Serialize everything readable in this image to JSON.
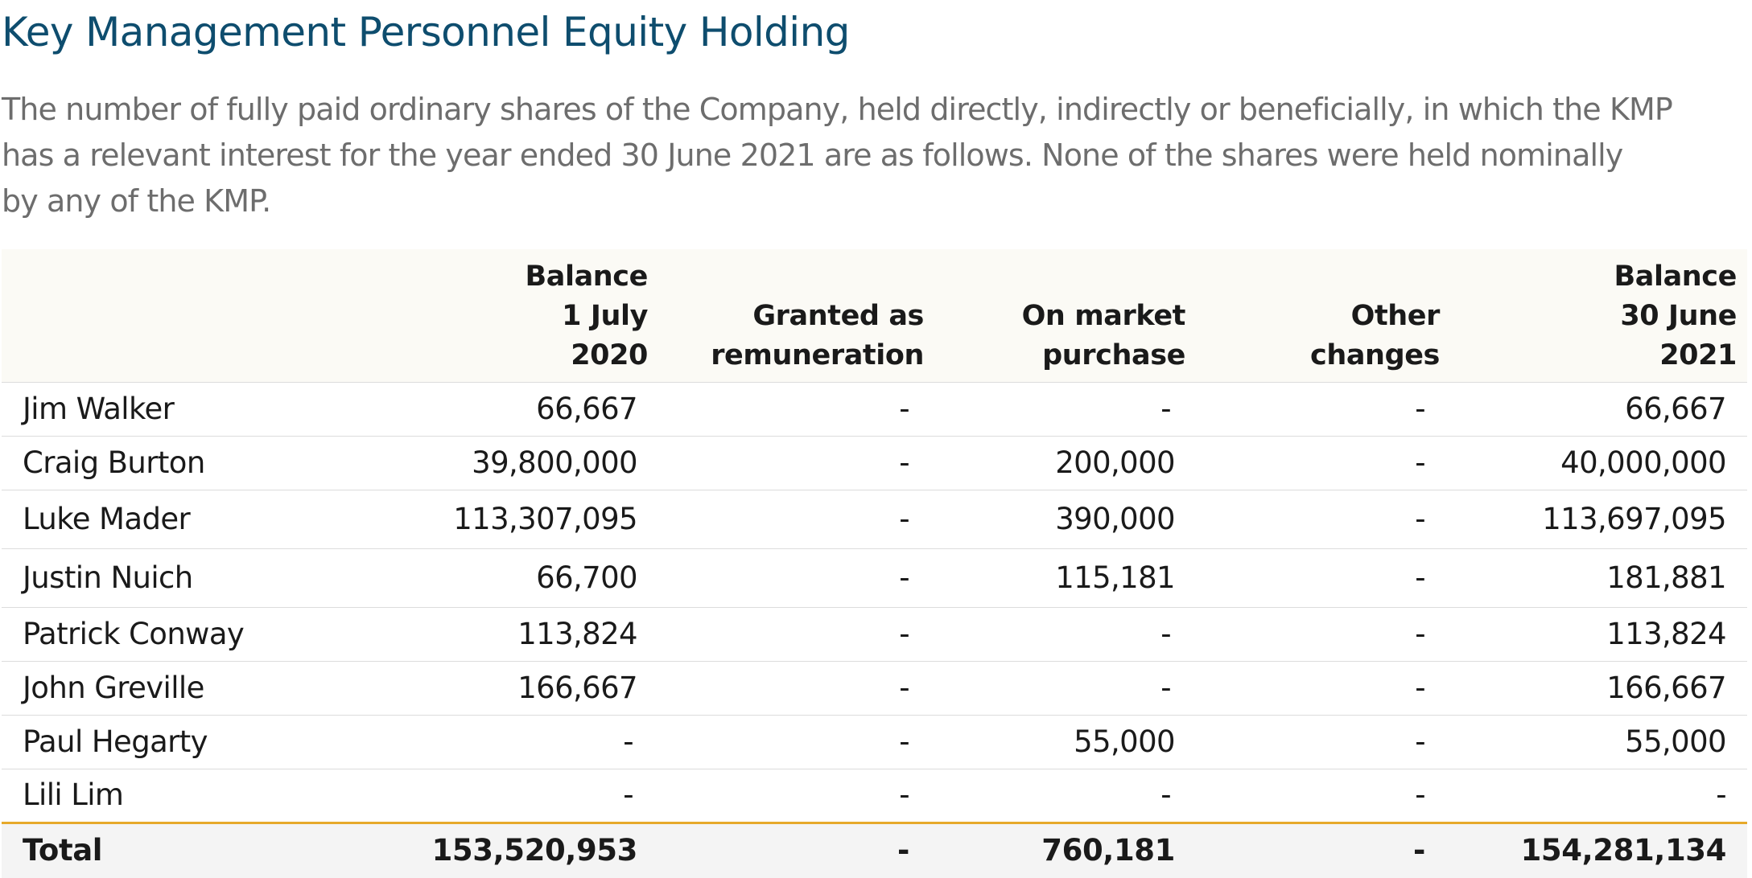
{
  "title": "Key Management Personnel Equity Holding",
  "intro_lines": [
    "The number of fully paid ordinary shares of the Company, held directly, indirectly or beneficially, in which the KMP",
    "has a relevant interest for the year ended 30 June 2021 are as follows. None of the shares were held nominally",
    "by any of the KMP."
  ],
  "table": {
    "headers": {
      "name": "",
      "opening": [
        "Balance",
        "1 July",
        "2020"
      ],
      "granted": [
        "Granted as",
        "remuneration"
      ],
      "market": [
        "On market",
        "purchase"
      ],
      "other": [
        "Other",
        "changes"
      ],
      "closing": [
        "Balance",
        "30 June",
        "2021"
      ]
    },
    "rows": [
      {
        "name": "Jim Walker",
        "opening": "66,667",
        "granted": "-",
        "market": "-",
        "other": "-",
        "closing": "66,667"
      },
      {
        "name": "Craig Burton",
        "opening": "39,800,000",
        "granted": "-",
        "market": "200,000",
        "other": "-",
        "closing": "40,000,000"
      },
      {
        "name": "Luke Mader",
        "opening": "113,307,095",
        "granted": "-",
        "market": "390,000",
        "other": "-",
        "closing": "113,697,095"
      },
      {
        "name": "Justin Nuich",
        "opening": "66,700",
        "granted": "-",
        "market": "115,181",
        "other": "-",
        "closing": "181,881"
      },
      {
        "name": "Patrick Conway",
        "opening": "113,824",
        "granted": "-",
        "market": "-",
        "other": "-",
        "closing": "113,824"
      },
      {
        "name": "John Greville",
        "opening": "166,667",
        "granted": "-",
        "market": "-",
        "other": "-",
        "closing": "166,667"
      },
      {
        "name": "Paul Hegarty",
        "opening": "-",
        "granted": "-",
        "market": "55,000",
        "other": "-",
        "closing": "55,000"
      },
      {
        "name": "Lili Lim",
        "opening": "-",
        "granted": "-",
        "market": "-",
        "other": "-",
        "closing": "-"
      }
    ],
    "total": {
      "name": "Total",
      "opening": "153,520,953",
      "granted": "-",
      "market": "760,181",
      "other": "-",
      "closing": "154,281,134"
    }
  },
  "colors": {
    "title": "#0e4d6e",
    "body_text": "#6d6d6d",
    "header_bg": "#fbfaf5",
    "total_bg": "#f4f4f4",
    "total_rule": "#e6a92a"
  }
}
